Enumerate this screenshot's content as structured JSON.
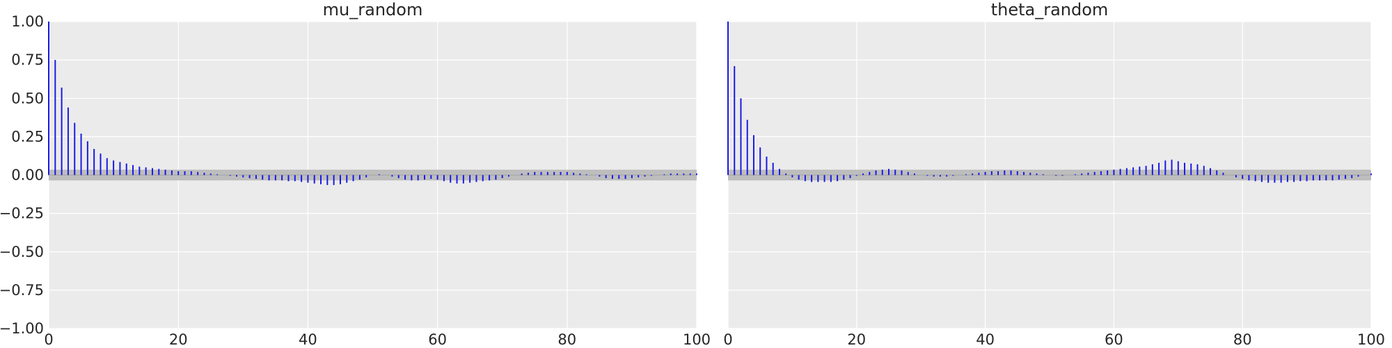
{
  "chart_data": [
    {
      "type": "bar",
      "kind": "autocorrelation",
      "title": "mu_random",
      "xlabel": "",
      "ylabel": "",
      "xlim": [
        0,
        100
      ],
      "ylim": [
        -1.0,
        1.0
      ],
      "xticks": [
        "0",
        "20",
        "40",
        "60",
        "80",
        "100"
      ],
      "yticks": [
        "1.00",
        "0.75",
        "0.50",
        "0.25",
        "0.00",
        "−0.25",
        "−0.50",
        "−0.75",
        "−1.00"
      ],
      "grid": true,
      "band": [
        -0.035,
        0.035
      ],
      "lags": [
        0,
        1,
        2,
        3,
        4,
        5,
        6,
        7,
        8,
        9,
        10,
        11,
        12,
        13,
        14,
        15,
        16,
        17,
        18,
        19,
        20,
        21,
        22,
        23,
        24,
        25,
        26,
        27,
        28,
        29,
        30,
        31,
        32,
        33,
        34,
        35,
        36,
        37,
        38,
        39,
        40,
        41,
        42,
        43,
        44,
        45,
        46,
        47,
        48,
        49,
        50,
        51,
        52,
        53,
        54,
        55,
        56,
        57,
        58,
        59,
        60,
        61,
        62,
        63,
        64,
        65,
        66,
        67,
        68,
        69,
        70,
        71,
        72,
        73,
        74,
        75,
        76,
        77,
        78,
        79,
        80,
        81,
        82,
        83,
        84,
        85,
        86,
        87,
        88,
        89,
        90,
        91,
        92,
        93,
        94,
        95,
        96,
        97,
        98,
        99,
        100
      ],
      "values": [
        1.0,
        0.75,
        0.57,
        0.44,
        0.34,
        0.27,
        0.22,
        0.17,
        0.14,
        0.11,
        0.095,
        0.085,
        0.075,
        0.065,
        0.055,
        0.05,
        0.045,
        0.04,
        0.035,
        0.03,
        0.025,
        0.025,
        0.025,
        0.02,
        0.015,
        0.01,
        0.005,
        0.0,
        -0.005,
        -0.01,
        -0.015,
        -0.02,
        -0.025,
        -0.03,
        -0.035,
        -0.035,
        -0.035,
        -0.04,
        -0.04,
        -0.045,
        -0.05,
        -0.055,
        -0.06,
        -0.065,
        -0.065,
        -0.06,
        -0.05,
        -0.04,
        -0.03,
        -0.015,
        0.0,
        0.005,
        0.0,
        -0.01,
        -0.02,
        -0.03,
        -0.035,
        -0.035,
        -0.03,
        -0.025,
        -0.03,
        -0.04,
        -0.05,
        -0.055,
        -0.055,
        -0.05,
        -0.045,
        -0.04,
        -0.035,
        -0.03,
        -0.02,
        -0.01,
        0.0,
        0.01,
        0.015,
        0.02,
        0.02,
        0.02,
        0.02,
        0.02,
        0.02,
        0.015,
        0.01,
        0.005,
        0.0,
        -0.01,
        -0.02,
        -0.025,
        -0.025,
        -0.025,
        -0.02,
        -0.015,
        -0.01,
        -0.005,
        0.0,
        0.005,
        0.01,
        0.01,
        0.01,
        0.01,
        0.01
      ]
    },
    {
      "type": "bar",
      "kind": "autocorrelation",
      "title": "theta_random",
      "xlabel": "",
      "ylabel": "",
      "xlim": [
        0,
        100
      ],
      "ylim": [
        -1.0,
        1.0
      ],
      "xticks": [
        "0",
        "20",
        "40",
        "60",
        "80",
        "100"
      ],
      "yticks": [
        "1.00",
        "0.75",
        "0.50",
        "0.25",
        "0.00",
        "−0.25",
        "−0.50",
        "−0.75",
        "−1.00"
      ],
      "grid": true,
      "band": [
        -0.035,
        0.035
      ],
      "lags": [
        0,
        1,
        2,
        3,
        4,
        5,
        6,
        7,
        8,
        9,
        10,
        11,
        12,
        13,
        14,
        15,
        16,
        17,
        18,
        19,
        20,
        21,
        22,
        23,
        24,
        25,
        26,
        27,
        28,
        29,
        30,
        31,
        32,
        33,
        34,
        35,
        36,
        37,
        38,
        39,
        40,
        41,
        42,
        43,
        44,
        45,
        46,
        47,
        48,
        49,
        50,
        51,
        52,
        53,
        54,
        55,
        56,
        57,
        58,
        59,
        60,
        61,
        62,
        63,
        64,
        65,
        66,
        67,
        68,
        69,
        70,
        71,
        72,
        73,
        74,
        75,
        76,
        77,
        78,
        79,
        80,
        81,
        82,
        83,
        84,
        85,
        86,
        87,
        88,
        89,
        90,
        91,
        92,
        93,
        94,
        95,
        96,
        97,
        98,
        99,
        100
      ],
      "values": [
        1.0,
        0.71,
        0.5,
        0.36,
        0.26,
        0.18,
        0.12,
        0.08,
        0.04,
        0.01,
        -0.015,
        -0.03,
        -0.04,
        -0.045,
        -0.045,
        -0.045,
        -0.045,
        -0.04,
        -0.03,
        -0.02,
        -0.005,
        0.01,
        0.02,
        0.03,
        0.035,
        0.04,
        0.035,
        0.03,
        0.02,
        0.01,
        0.0,
        -0.005,
        -0.01,
        -0.01,
        -0.01,
        -0.005,
        0.0,
        0.005,
        0.01,
        0.015,
        0.02,
        0.025,
        0.025,
        0.03,
        0.03,
        0.025,
        0.02,
        0.015,
        0.01,
        0.005,
        0.0,
        -0.005,
        -0.005,
        0.0,
        0.005,
        0.01,
        0.015,
        0.02,
        0.025,
        0.03,
        0.035,
        0.04,
        0.045,
        0.05,
        0.055,
        0.06,
        0.07,
        0.08,
        0.095,
        0.1,
        0.09,
        0.08,
        0.075,
        0.07,
        0.06,
        0.045,
        0.03,
        0.015,
        0.0,
        -0.015,
        -0.025,
        -0.035,
        -0.04,
        -0.045,
        -0.05,
        -0.05,
        -0.05,
        -0.045,
        -0.045,
        -0.04,
        -0.04,
        -0.035,
        -0.035,
        -0.035,
        -0.035,
        -0.03,
        -0.025,
        -0.02,
        -0.01,
        0.0,
        0.01
      ]
    }
  ]
}
